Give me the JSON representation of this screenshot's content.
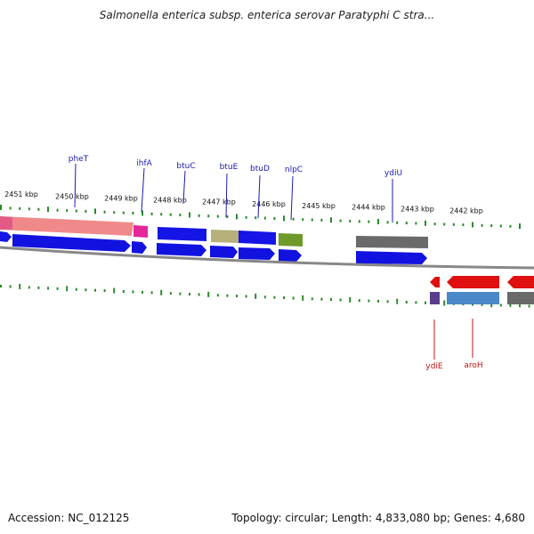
{
  "title": "Salmonella enterica subsp. enterica serovar Paratyphi C stra...",
  "footer": {
    "accession": "Accession: NC_012125",
    "summary": "Topology: circular; Length: 4,833,080 bp; Genes: 4,680"
  },
  "colors": {
    "forward_label": "#1a1ab4",
    "reverse_label": "#c81414",
    "tick": "#2a8a2a",
    "backbone": "#888888"
  },
  "kbp_ticks": [
    "2451 kbp",
    "2450 kbp",
    "2449 kbp",
    "2448 kbp",
    "2447 kbp",
    "2446 kbp",
    "2445 kbp",
    "2444 kbp",
    "2443 kbp",
    "2442 kbp"
  ],
  "forward_genes": [
    "pheT",
    "ihfA",
    "btuC",
    "btuE",
    "btuD",
    "nlpC",
    "ydiU"
  ],
  "reverse_genes": [
    "ydiE",
    "aroH"
  ]
}
